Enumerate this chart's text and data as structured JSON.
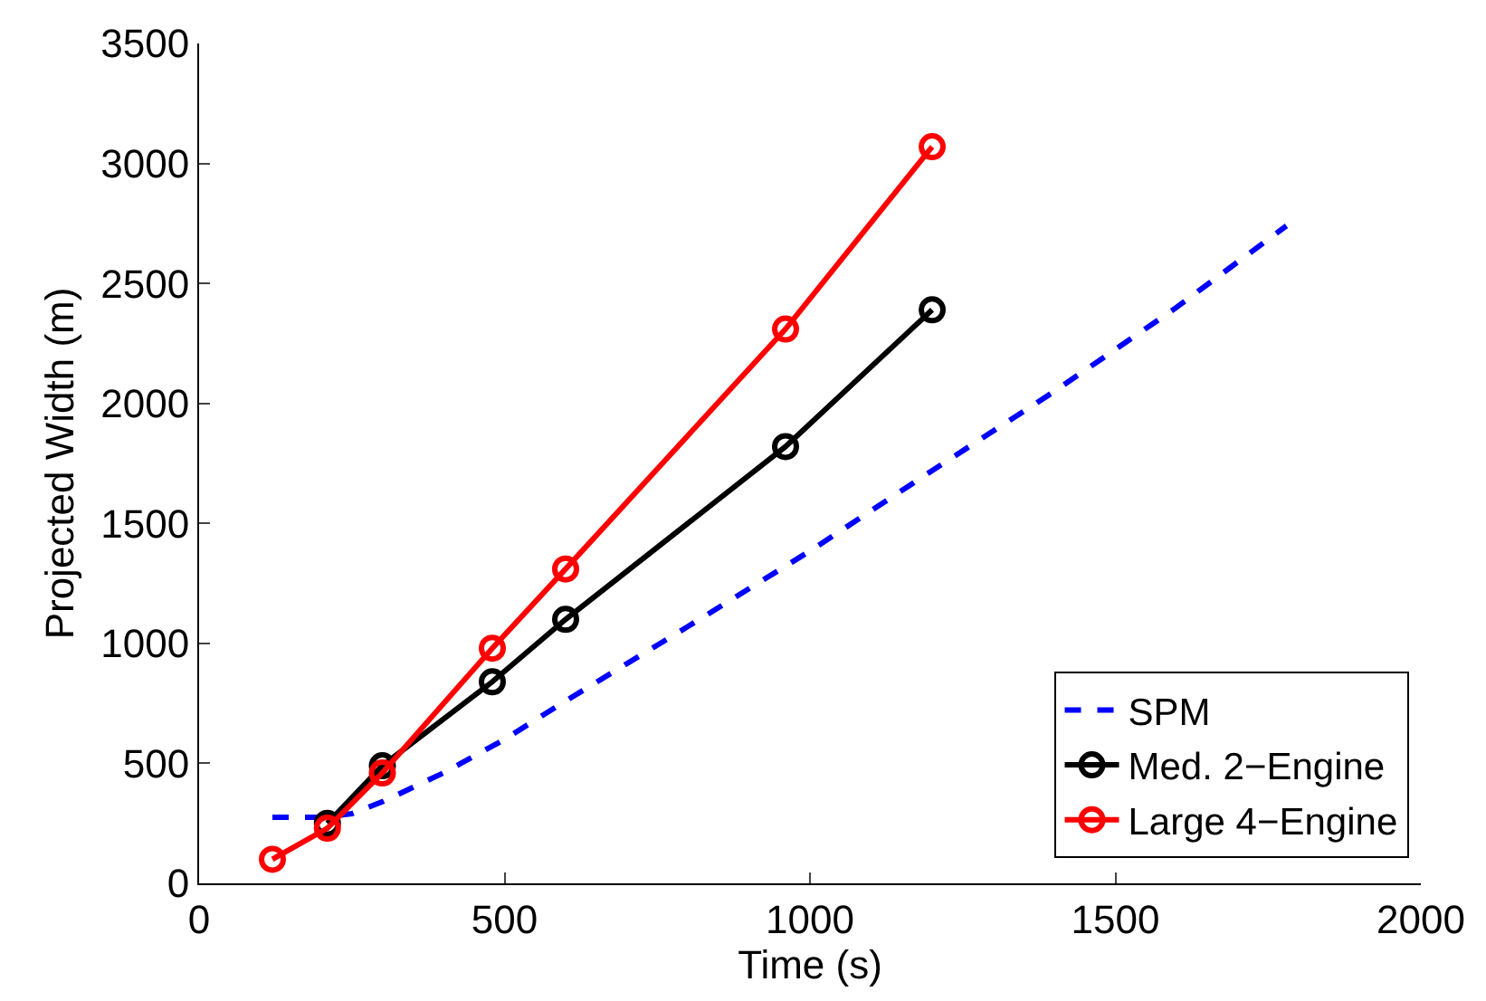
{
  "chart_data": {
    "type": "line",
    "xlabel": "Time (s)",
    "ylabel": "Projected Width (m)",
    "xlim": [
      0,
      2000
    ],
    "xticks": [
      0,
      500,
      1000,
      1500,
      2000
    ],
    "ylim": [
      0,
      3500
    ],
    "yticks": [
      0,
      500,
      1000,
      1500,
      2000,
      2500,
      3000,
      3500
    ],
    "legend": "bottom right",
    "series": [
      {
        "name": "SPM",
        "color": "#0000ff",
        "line_style": "dashed",
        "marker": "none",
        "x": [
          120,
          200,
          250,
          300,
          400,
          500,
          600,
          800,
          1000,
          1200,
          1400,
          1600,
          1780
        ],
        "values": [
          275,
          275,
          290,
          340,
          460,
          600,
          760,
          1070,
          1385,
          1720,
          2050,
          2400,
          2740
        ]
      },
      {
        "name": "Med. 2−Engine",
        "color": "#000000",
        "line_style": "solid",
        "marker": "circle",
        "x": [
          210,
          300,
          480,
          600,
          960,
          1200
        ],
        "values": [
          250,
          490,
          840,
          1100,
          1820,
          2390
        ]
      },
      {
        "name": "Large 4−Engine",
        "color": "#ff0000",
        "line_style": "solid",
        "marker": "circle",
        "x": [
          120,
          210,
          300,
          480,
          600,
          960,
          1200
        ],
        "values": [
          100,
          230,
          460,
          980,
          1310,
          2310,
          3070
        ]
      }
    ]
  }
}
